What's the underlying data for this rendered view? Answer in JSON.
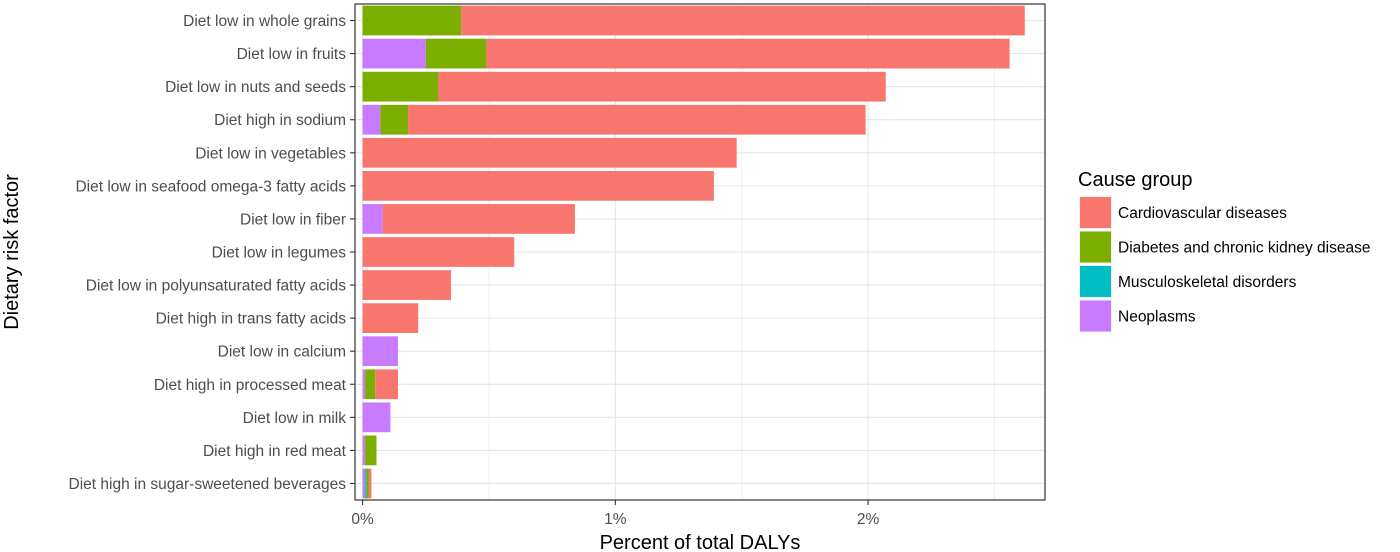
{
  "chart_data": {
    "type": "bar",
    "orientation": "horizontal",
    "stacked": true,
    "xlabel": "Percent of total DALYs",
    "ylabel": "Dietary risk factor",
    "xlim": [
      -0.03,
      2.7
    ],
    "x_ticks": [
      0,
      1,
      2
    ],
    "x_tick_labels": [
      "0%",
      "1%",
      "2%"
    ],
    "grid": true,
    "legend": {
      "title": "Cause group",
      "position": "right"
    },
    "categories": [
      "Diet low in whole grains",
      "Diet low in fruits",
      "Diet low in nuts and seeds",
      "Diet high in sodium",
      "Diet low in vegetables",
      "Diet low in seafood omega-3 fatty acids",
      "Diet low in fiber",
      "Diet low in legumes",
      "Diet low in polyunsaturated fatty acids",
      "Diet high in trans fatty acids",
      "Diet low in calcium",
      "Diet high in processed meat",
      "Diet low in milk",
      "Diet high in red meat",
      "Diet high in sugar-sweetened beverages"
    ],
    "series": [
      {
        "name": "Neoplasms",
        "color": "#C77CFF",
        "values": [
          0,
          0.25,
          0,
          0.07,
          0,
          0,
          0.08,
          0,
          0,
          0,
          0.14,
          0.01,
          0.11,
          0.01,
          0.01
        ]
      },
      {
        "name": "Musculoskeletal disorders",
        "color": "#00BFC4",
        "values": [
          0,
          0,
          0,
          0,
          0,
          0,
          0,
          0,
          0,
          0,
          0,
          0,
          0,
          0,
          0.005
        ]
      },
      {
        "name": "Diabetes and chronic kidney disease",
        "color": "#7CAE00",
        "values": [
          0.39,
          0.24,
          0.3,
          0.11,
          0,
          0,
          0,
          0,
          0,
          0,
          0,
          0.04,
          0,
          0.045,
          0.01
        ]
      },
      {
        "name": "Cardiovascular diseases",
        "color": "#F8766D",
        "values": [
          2.23,
          2.07,
          1.77,
          1.81,
          1.48,
          1.39,
          0.76,
          0.6,
          0.35,
          0.22,
          0,
          0.09,
          0,
          0,
          0.01
        ]
      }
    ],
    "legend_order": [
      "Cardiovascular diseases",
      "Diabetes and chronic kidney disease",
      "Musculoskeletal disorders",
      "Neoplasms"
    ]
  }
}
